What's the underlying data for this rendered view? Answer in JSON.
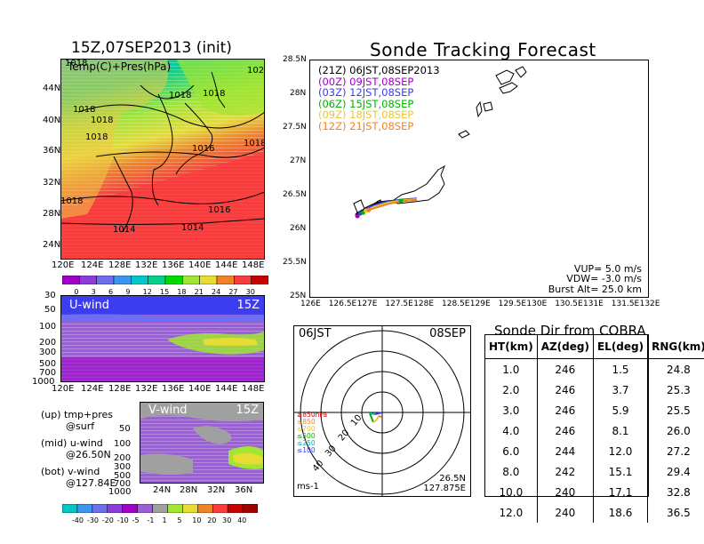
{
  "left_title": "15Z,07SEP2013 (init)",
  "right_title": "Sonde Tracking Forecast",
  "map_panel": {
    "label": "Temp(C)+Pres(hPa)",
    "lat_labels": [
      "44N",
      "40N",
      "36N",
      "32N",
      "28N",
      "24N"
    ],
    "lon_labels": [
      "120E",
      "124E",
      "128E",
      "132E",
      "136E",
      "140E",
      "144E",
      "148E"
    ],
    "isobar_labels": [
      "1018",
      "1018",
      "1018",
      "1018",
      "1018",
      "1018",
      "1016",
      "1016",
      "1014",
      "1014",
      "1018",
      "102",
      "1018"
    ],
    "colorbar_ticks": [
      "0",
      "3",
      "6",
      "9",
      "12",
      "15",
      "18",
      "21",
      "24",
      "27",
      "30"
    ],
    "colorbar_colors": [
      "#a000c8",
      "#8c3cdc",
      "#6e6ef0",
      "#3c96f0",
      "#00c8c8",
      "#00d28c",
      "#00dc00",
      "#a0e632",
      "#e6dc32",
      "#f08228",
      "#fa3c3c",
      "#c80000"
    ]
  },
  "uwind_panel": {
    "label": "U-wind",
    "time": "15Z",
    "y_labels": [
      "30",
      "50",
      "100",
      "200",
      "300",
      "500",
      "700",
      "1000"
    ],
    "x_labels": [
      "120E",
      "124E",
      "128E",
      "132E",
      "136E",
      "140E",
      "144E",
      "148E"
    ]
  },
  "vwind_panel": {
    "label": "V-wind",
    "time": "15Z",
    "y_labels": [
      "50",
      "100",
      "200",
      "300",
      "500",
      "700",
      "1000"
    ],
    "x_labels": [
      "24N",
      "28N",
      "32N",
      "36N"
    ],
    "colorbar_ticks": [
      "-40",
      "-30",
      "-20",
      "-10",
      "-5",
      "-1",
      "1",
      "5",
      "10",
      "20",
      "30",
      "40"
    ],
    "colorbar_colors": [
      "#00c8c8",
      "#3c96f0",
      "#6e6ef0",
      "#8c3cdc",
      "#a000c8",
      "#9b5fd7",
      "#a0a0a0",
      "#a0e632",
      "#e6dc32",
      "#f08228",
      "#fa3c3c",
      "#c80000",
      "#a00000"
    ]
  },
  "legend_notes": [
    {
      "line1": "(up) tmp+pres",
      "line2": "@surf"
    },
    {
      "line1": "(mid) u-wind",
      "line2": "@26.50N"
    },
    {
      "line1": "(bot) v-wind",
      "line2": "@127.84E"
    }
  ],
  "track_panel": {
    "lat_labels": [
      "28.5N",
      "28N",
      "27.5N",
      "27N",
      "26.5N",
      "26N",
      "25.5N",
      "25N"
    ],
    "lon_labels": [
      "126E",
      "126.5E",
      "127E",
      "127.5E",
      "128E",
      "128.5E",
      "129E",
      "129.5E",
      "130E",
      "130.5E",
      "131E",
      "131.5E",
      "132E"
    ],
    "launches": [
      {
        "text": "(21Z) 06JST,08SEP2013",
        "color": "#000000"
      },
      {
        "text": "(00Z) 09JST,08SEP",
        "color": "#a000c8"
      },
      {
        "text": "(03Z) 12JST,08SEP",
        "color": "#3c3cf0"
      },
      {
        "text": "(06Z) 15JST,08SEP",
        "color": "#00b400"
      },
      {
        "text": "(09Z) 18JST,08SEP",
        "color": "#e6c832"
      },
      {
        "text": "(12Z) 21JST,08SEP",
        "color": "#f08228"
      }
    ],
    "params": [
      "VUP= 5.0 m/s",
      "VDW= -3.0 m/s",
      "Burst Alt= 25.0 km"
    ]
  },
  "polar_panel": {
    "time": "06JST",
    "date": "08SEP",
    "unit": "ms-1",
    "location_lat": "26.5N",
    "location_lon": "127.875E",
    "ring_labels": [
      "10",
      "20",
      "30",
      "40"
    ],
    "level_labels": [
      {
        "text": "≥850hPa",
        "color": "#e00000"
      },
      {
        "text": "≤850",
        "color": "#f08228"
      },
      {
        "text": "≤700",
        "color": "#e6c832"
      },
      {
        "text": "≤500",
        "color": "#00b400"
      },
      {
        "text": "≤250",
        "color": "#00b4b4"
      },
      {
        "text": "≤100",
        "color": "#3c3cf0"
      }
    ]
  },
  "sonde_table": {
    "title": "Sonde Dir from COBRA",
    "headers": [
      "HT(km)",
      "AZ(deg)",
      "EL(deg)",
      "RNG(km)"
    ],
    "rows": [
      [
        "1.0",
        "246",
        "1.5",
        "24.8"
      ],
      [
        "2.0",
        "246",
        "3.7",
        "25.3"
      ],
      [
        "3.0",
        "246",
        "5.9",
        "25.5"
      ],
      [
        "4.0",
        "246",
        "8.1",
        "26.0"
      ],
      [
        "6.0",
        "244",
        "12.0",
        "27.2"
      ],
      [
        "8.0",
        "242",
        "15.1",
        "29.4"
      ],
      [
        "10.0",
        "240",
        "17.1",
        "32.8"
      ],
      [
        "12.0",
        "240",
        "18.6",
        "36.5"
      ]
    ]
  },
  "chart_data": [
    {
      "type": "heatmap",
      "title": "15Z,07SEP2013 (init)",
      "label": "Temp(C)+Pres(hPa)",
      "x_range": [
        "120E",
        "150E"
      ],
      "y_range": [
        "22N",
        "47N"
      ],
      "colorbar": [
        0,
        3,
        6,
        9,
        12,
        15,
        18,
        21,
        24,
        27,
        30
      ]
    },
    {
      "type": "heatmap",
      "label": "U-wind",
      "x_range": [
        "120E",
        "150E"
      ],
      "y_levels_hPa": [
        30,
        50,
        100,
        200,
        300,
        500,
        700,
        1000
      ]
    },
    {
      "type": "heatmap",
      "label": "V-wind",
      "x_range": [
        "22N",
        "38N"
      ],
      "y_levels_hPa": [
        50,
        100,
        200,
        300,
        500,
        700,
        1000
      ],
      "colorbar": [
        -40,
        -30,
        -20,
        -10,
        -5,
        -1,
        1,
        5,
        10,
        20,
        30,
        40
      ]
    },
    {
      "type": "line",
      "title": "Sonde Tracking Forecast",
      "xlim": [
        126,
        132
      ],
      "ylim": [
        25,
        28.5
      ],
      "series": [
        {
          "name": "(21Z) 06JST,08SEP2013",
          "x": [
            127.9,
            127.7,
            127.4,
            127.2,
            127.0,
            126.85
          ],
          "y": [
            26.45,
            26.44,
            26.42,
            26.4,
            26.32,
            26.22
          ]
        },
        {
          "name": "(00Z) 09JST,08SEP",
          "x": [
            127.9,
            127.6,
            127.3,
            127.0,
            126.85
          ],
          "y": [
            26.44,
            26.42,
            26.38,
            26.3,
            26.2
          ]
        },
        {
          "name": "(03Z) 12JST,08SEP",
          "x": [
            127.9,
            127.6,
            127.3,
            127.05,
            126.9
          ],
          "y": [
            26.46,
            26.44,
            26.4,
            26.33,
            26.24
          ]
        },
        {
          "name": "(06Z) 15JST,08SEP",
          "x": [
            127.9,
            127.6,
            127.35,
            127.1,
            126.95
          ],
          "y": [
            26.45,
            26.43,
            26.39,
            26.32,
            26.25
          ]
        },
        {
          "name": "(09Z) 18JST,08SEP",
          "x": [
            127.9,
            127.65,
            127.4,
            127.15,
            127.0
          ],
          "y": [
            26.45,
            26.43,
            26.4,
            26.34,
            26.28
          ]
        },
        {
          "name": "(12Z) 21JST,08SEP",
          "x": [
            127.9,
            127.65,
            127.4,
            127.2,
            127.05
          ],
          "y": [
            26.44,
            26.42,
            26.38,
            26.33,
            26.29
          ]
        }
      ]
    },
    {
      "type": "table",
      "title": "Sonde Dir from COBRA",
      "columns": [
        "HT(km)",
        "AZ(deg)",
        "EL(deg)",
        "RNG(km)"
      ],
      "rows": [
        [
          1.0,
          246,
          1.5,
          24.8
        ],
        [
          2.0,
          246,
          3.7,
          25.3
        ],
        [
          3.0,
          246,
          5.9,
          25.5
        ],
        [
          4.0,
          246,
          8.1,
          26.0
        ],
        [
          6.0,
          244,
          12.0,
          27.2
        ],
        [
          8.0,
          242,
          15.1,
          29.4
        ],
        [
          10.0,
          240,
          17.1,
          32.8
        ],
        [
          12.0,
          240,
          18.6,
          36.5
        ]
      ]
    }
  ]
}
